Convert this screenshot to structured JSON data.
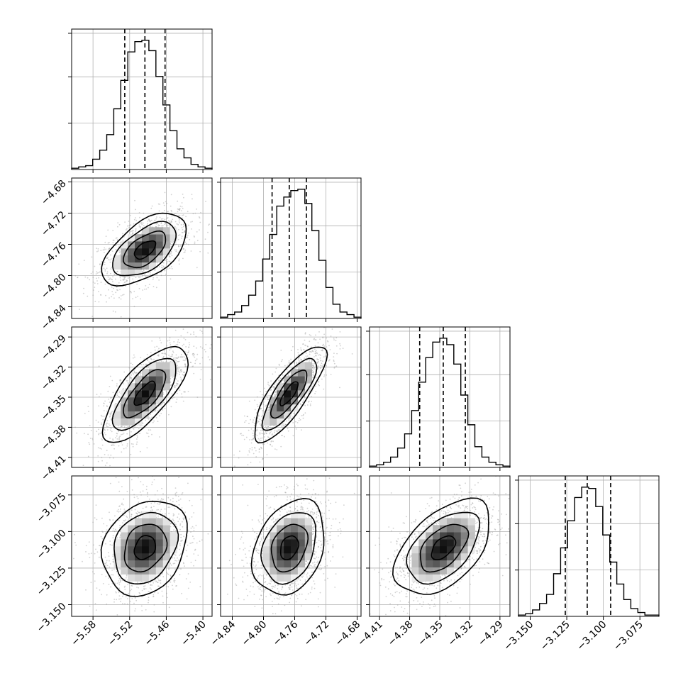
{
  "chart_data": {
    "type": "corner",
    "histogram_bins": 20,
    "quantile_lines": [
      0.16,
      0.5,
      0.84
    ],
    "contour_levels": 3,
    "show_scatter_points": true,
    "grid": true,
    "colors": {
      "background": "#ffffff",
      "line": "#000000",
      "grid": "#b0b0b0",
      "scatter": "#9a9a9a",
      "density_dark": "#000000",
      "density_light": "#ffffff"
    },
    "parameters": [
      {
        "range": [
          -5.615,
          -5.385
        ],
        "median": -5.495,
        "q16": -5.528,
        "q84": -5.462,
        "ticks": [
          -5.58,
          -5.52,
          -5.46,
          -5.4
        ],
        "tick_labels": [
          "−5.58",
          "−5.52",
          "−5.46",
          "−5.40"
        ],
        "hist": [
          1,
          2,
          3,
          8,
          15,
          27,
          47,
          69,
          91,
          99,
          100,
          92,
          72,
          50,
          30,
          16,
          9,
          4,
          2,
          1
        ]
      },
      {
        "range": [
          -4.855,
          -4.675
        ],
        "median": -4.767,
        "q16": -4.789,
        "q84": -4.745,
        "ticks": [
          -4.84,
          -4.8,
          -4.76,
          -4.72,
          -4.68
        ],
        "tick_labels": [
          "−4.84",
          "−4.80",
          "−4.76",
          "−4.72",
          "−4.68"
        ],
        "hist": [
          1,
          3,
          5,
          10,
          18,
          29,
          46,
          65,
          87,
          94,
          99,
          100,
          89,
          68,
          45,
          24,
          11,
          5,
          3,
          1
        ]
      },
      {
        "range": [
          -4.42,
          -4.28
        ],
        "median": -4.3465,
        "q16": -4.37,
        "q84": -4.3245,
        "ticks": [
          -4.41,
          -4.38,
          -4.35,
          -4.32,
          -4.29
        ],
        "tick_labels": [
          "−4.41",
          "−4.38",
          "−4.35",
          "−4.32",
          "−4.29"
        ],
        "hist": [
          1,
          2,
          4,
          8,
          15,
          26,
          44,
          66,
          85,
          97,
          100,
          95,
          80,
          56,
          33,
          16,
          8,
          4,
          2,
          1
        ]
      },
      {
        "range": [
          -3.158,
          -3.062
        ],
        "median": -3.111,
        "q16": -3.126,
        "q84": -3.095,
        "ticks": [
          -3.15,
          -3.125,
          -3.1,
          -3.075
        ],
        "tick_labels": [
          "−3.150",
          "−3.125",
          "−3.100",
          "−3.075"
        ],
        "hist": [
          1,
          2,
          5,
          10,
          17,
          33,
          53,
          74,
          92,
          100,
          99,
          85,
          63,
          42,
          25,
          13,
          6,
          3,
          1,
          1
        ]
      }
    ],
    "correlations": {
      "1-0": 0.55,
      "2-0": 0.72,
      "2-1": 0.8,
      "3-0": 0.22,
      "3-1": 0.28,
      "3-2": 0.5
    }
  }
}
